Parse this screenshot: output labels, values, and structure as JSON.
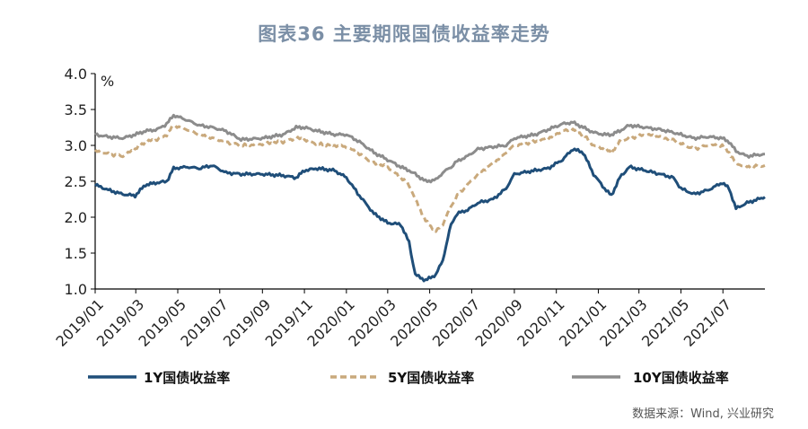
{
  "title": "图表36  主要期限国债收益率走势",
  "source": "数据来源：Wind, 兴业研究",
  "colors": {
    "y1": "#1f4e79",
    "y5": "#c9a97c",
    "y10": "#8c8c8c"
  },
  "chart_data": {
    "type": "line",
    "unit": "%",
    "ylim": [
      1.0,
      4.0
    ],
    "yticks": [
      "1.0",
      "1.5",
      "2.0",
      "2.5",
      "3.0",
      "3.5",
      "4.0"
    ],
    "xlim": [
      "2019-01-01",
      "2021-08-31"
    ],
    "xticks": [
      "2019/01",
      "2019/03",
      "2019/05",
      "2019/07",
      "2019/09",
      "2019/11",
      "2020/01",
      "2020/03",
      "2020/05",
      "2020/07",
      "2020/09",
      "2020/11",
      "2021/01",
      "2021/03",
      "2021/05",
      "2021/07"
    ],
    "grid": false,
    "legend_position": "bottom",
    "series": [
      {
        "name": "1Y国债收益率",
        "style": "solid",
        "color": "#1f4e79",
        "points": [
          [
            "2019-01-01",
            2.45
          ],
          [
            "2019-01-20",
            2.38
          ],
          [
            "2019-02-10",
            2.32
          ],
          [
            "2019-02-28",
            2.3
          ],
          [
            "2019-03-15",
            2.45
          ],
          [
            "2019-04-01",
            2.48
          ],
          [
            "2019-04-15",
            2.5
          ],
          [
            "2019-04-25",
            2.68
          ],
          [
            "2019-05-15",
            2.7
          ],
          [
            "2019-06-01",
            2.68
          ],
          [
            "2019-06-20",
            2.72
          ],
          [
            "2019-07-10",
            2.62
          ],
          [
            "2019-08-01",
            2.6
          ],
          [
            "2019-09-01",
            2.6
          ],
          [
            "2019-10-01",
            2.58
          ],
          [
            "2019-10-20",
            2.55
          ],
          [
            "2019-11-01",
            2.65
          ],
          [
            "2019-11-20",
            2.68
          ],
          [
            "2019-12-15",
            2.65
          ],
          [
            "2020-01-01",
            2.55
          ],
          [
            "2020-01-20",
            2.3
          ],
          [
            "2020-02-10",
            2.05
          ],
          [
            "2020-03-01",
            1.92
          ],
          [
            "2020-03-20",
            1.9
          ],
          [
            "2020-04-01",
            1.65
          ],
          [
            "2020-04-10",
            1.2
          ],
          [
            "2020-04-25",
            1.12
          ],
          [
            "2020-05-10",
            1.2
          ],
          [
            "2020-05-20",
            1.4
          ],
          [
            "2020-06-01",
            1.9
          ],
          [
            "2020-06-10",
            2.05
          ],
          [
            "2020-06-25",
            2.1
          ],
          [
            "2020-07-10",
            2.2
          ],
          [
            "2020-08-01",
            2.25
          ],
          [
            "2020-08-20",
            2.4
          ],
          [
            "2020-09-01",
            2.6
          ],
          [
            "2020-10-01",
            2.65
          ],
          [
            "2020-10-20",
            2.68
          ],
          [
            "2020-11-10",
            2.8
          ],
          [
            "2020-11-25",
            2.95
          ],
          [
            "2020-12-10",
            2.9
          ],
          [
            "2020-12-25",
            2.6
          ],
          [
            "2021-01-10",
            2.4
          ],
          [
            "2021-01-20",
            2.3
          ],
          [
            "2021-02-01",
            2.55
          ],
          [
            "2021-02-15",
            2.7
          ],
          [
            "2021-03-10",
            2.65
          ],
          [
            "2021-04-01",
            2.6
          ],
          [
            "2021-04-20",
            2.55
          ],
          [
            "2021-05-01",
            2.4
          ],
          [
            "2021-05-20",
            2.32
          ],
          [
            "2021-06-10",
            2.38
          ],
          [
            "2021-06-30",
            2.48
          ],
          [
            "2021-07-10",
            2.4
          ],
          [
            "2021-07-20",
            2.12
          ],
          [
            "2021-08-05",
            2.2
          ],
          [
            "2021-08-31",
            2.28
          ]
        ]
      },
      {
        "name": "5Y国债收益率",
        "style": "dashed",
        "color": "#c9a97c",
        "points": [
          [
            "2019-01-01",
            2.92
          ],
          [
            "2019-01-20",
            2.88
          ],
          [
            "2019-02-10",
            2.85
          ],
          [
            "2019-02-28",
            2.95
          ],
          [
            "2019-03-15",
            3.05
          ],
          [
            "2019-04-01",
            3.08
          ],
          [
            "2019-04-15",
            3.15
          ],
          [
            "2019-04-25",
            3.28
          ],
          [
            "2019-05-15",
            3.22
          ],
          [
            "2019-06-01",
            3.15
          ],
          [
            "2019-06-20",
            3.1
          ],
          [
            "2019-07-10",
            3.05
          ],
          [
            "2019-08-01",
            3.0
          ],
          [
            "2019-09-01",
            3.02
          ],
          [
            "2019-10-01",
            3.05
          ],
          [
            "2019-10-20",
            3.1
          ],
          [
            "2019-11-01",
            3.08
          ],
          [
            "2019-11-20",
            3.02
          ],
          [
            "2019-12-15",
            3.0
          ],
          [
            "2020-01-01",
            2.98
          ],
          [
            "2020-01-20",
            2.88
          ],
          [
            "2020-02-10",
            2.75
          ],
          [
            "2020-03-01",
            2.7
          ],
          [
            "2020-03-20",
            2.55
          ],
          [
            "2020-04-01",
            2.45
          ],
          [
            "2020-04-10",
            2.25
          ],
          [
            "2020-04-25",
            1.95
          ],
          [
            "2020-05-10",
            1.8
          ],
          [
            "2020-05-20",
            1.9
          ],
          [
            "2020-06-01",
            2.15
          ],
          [
            "2020-06-10",
            2.3
          ],
          [
            "2020-06-25",
            2.45
          ],
          [
            "2020-07-10",
            2.6
          ],
          [
            "2020-08-01",
            2.75
          ],
          [
            "2020-08-20",
            2.9
          ],
          [
            "2020-09-01",
            3.0
          ],
          [
            "2020-10-01",
            3.05
          ],
          [
            "2020-10-20",
            3.1
          ],
          [
            "2020-11-10",
            3.2
          ],
          [
            "2020-11-25",
            3.22
          ],
          [
            "2020-12-10",
            3.15
          ],
          [
            "2020-12-25",
            3.0
          ],
          [
            "2021-01-10",
            2.95
          ],
          [
            "2021-01-20",
            2.9
          ],
          [
            "2021-02-01",
            3.05
          ],
          [
            "2021-02-15",
            3.1
          ],
          [
            "2021-03-10",
            3.15
          ],
          [
            "2021-04-01",
            3.12
          ],
          [
            "2021-04-20",
            3.08
          ],
          [
            "2021-05-01",
            3.02
          ],
          [
            "2021-05-20",
            2.95
          ],
          [
            "2021-06-10",
            3.0
          ],
          [
            "2021-06-30",
            3.0
          ],
          [
            "2021-07-10",
            2.9
          ],
          [
            "2021-07-20",
            2.75
          ],
          [
            "2021-08-05",
            2.7
          ],
          [
            "2021-08-31",
            2.72
          ]
        ]
      },
      {
        "name": "10Y国债收益率",
        "style": "solid",
        "color": "#8c8c8c",
        "points": [
          [
            "2019-01-01",
            3.15
          ],
          [
            "2019-01-20",
            3.12
          ],
          [
            "2019-02-10",
            3.1
          ],
          [
            "2019-02-28",
            3.15
          ],
          [
            "2019-03-15",
            3.2
          ],
          [
            "2019-04-01",
            3.22
          ],
          [
            "2019-04-15",
            3.3
          ],
          [
            "2019-04-25",
            3.42
          ],
          [
            "2019-05-15",
            3.35
          ],
          [
            "2019-06-01",
            3.28
          ],
          [
            "2019-06-20",
            3.25
          ],
          [
            "2019-07-10",
            3.2
          ],
          [
            "2019-08-01",
            3.08
          ],
          [
            "2019-09-01",
            3.1
          ],
          [
            "2019-10-01",
            3.15
          ],
          [
            "2019-10-20",
            3.25
          ],
          [
            "2019-11-01",
            3.25
          ],
          [
            "2019-11-20",
            3.2
          ],
          [
            "2019-12-15",
            3.15
          ],
          [
            "2020-01-01",
            3.15
          ],
          [
            "2020-01-20",
            3.05
          ],
          [
            "2020-02-10",
            2.9
          ],
          [
            "2020-03-01",
            2.8
          ],
          [
            "2020-03-20",
            2.7
          ],
          [
            "2020-04-01",
            2.65
          ],
          [
            "2020-04-10",
            2.6
          ],
          [
            "2020-04-25",
            2.5
          ],
          [
            "2020-05-10",
            2.52
          ],
          [
            "2020-05-20",
            2.62
          ],
          [
            "2020-06-01",
            2.7
          ],
          [
            "2020-06-10",
            2.78
          ],
          [
            "2020-06-25",
            2.85
          ],
          [
            "2020-07-10",
            2.95
          ],
          [
            "2020-08-01",
            2.98
          ],
          [
            "2020-08-20",
            3.0
          ],
          [
            "2020-09-01",
            3.1
          ],
          [
            "2020-10-01",
            3.15
          ],
          [
            "2020-10-20",
            3.22
          ],
          [
            "2020-11-10",
            3.3
          ],
          [
            "2020-11-25",
            3.32
          ],
          [
            "2020-12-10",
            3.25
          ],
          [
            "2020-12-25",
            3.18
          ],
          [
            "2021-01-10",
            3.15
          ],
          [
            "2021-01-20",
            3.15
          ],
          [
            "2021-02-01",
            3.2
          ],
          [
            "2021-02-15",
            3.28
          ],
          [
            "2021-03-10",
            3.25
          ],
          [
            "2021-04-01",
            3.22
          ],
          [
            "2021-04-20",
            3.18
          ],
          [
            "2021-05-01",
            3.15
          ],
          [
            "2021-05-20",
            3.1
          ],
          [
            "2021-06-10",
            3.12
          ],
          [
            "2021-06-30",
            3.1
          ],
          [
            "2021-07-10",
            3.05
          ],
          [
            "2021-07-20",
            2.92
          ],
          [
            "2021-08-05",
            2.85
          ],
          [
            "2021-08-31",
            2.88
          ]
        ]
      }
    ]
  }
}
